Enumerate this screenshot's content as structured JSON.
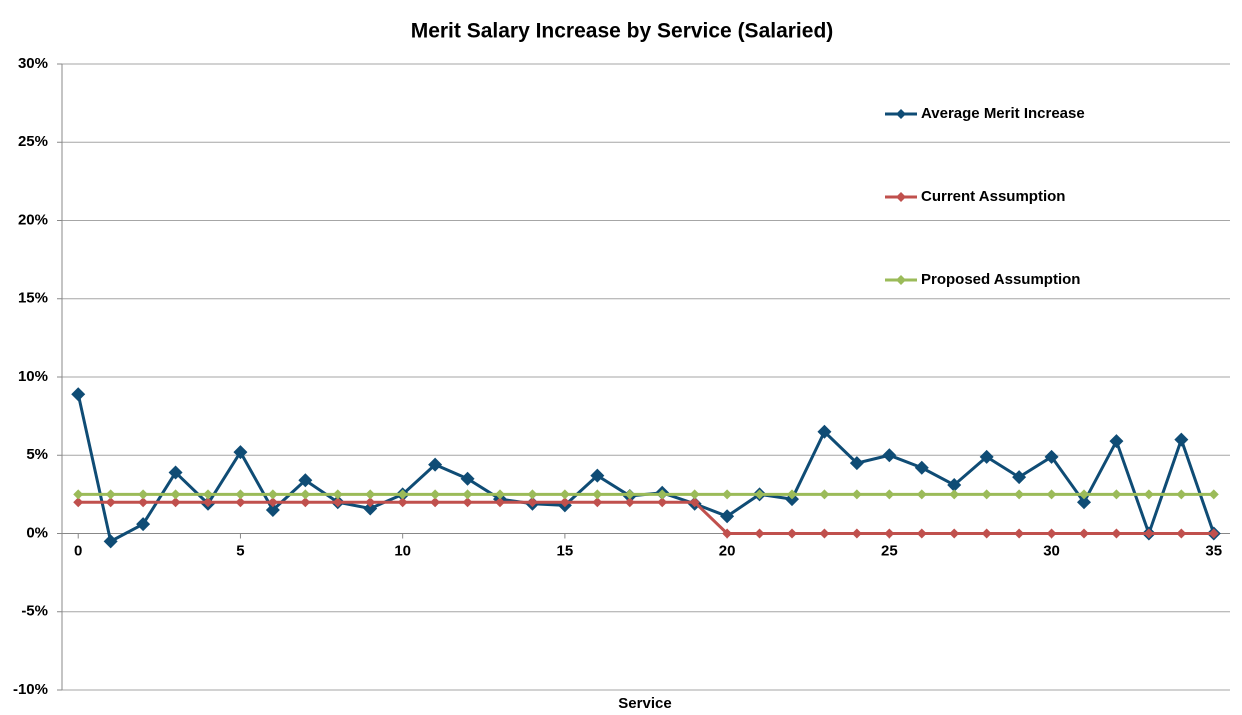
{
  "chart_data": {
    "type": "line",
    "title": "Merit Salary Increase by Service (Salaried)",
    "x_label": "Service",
    "x": [
      0,
      1,
      2,
      3,
      4,
      5,
      6,
      7,
      8,
      9,
      10,
      11,
      12,
      13,
      14,
      15,
      16,
      17,
      18,
      19,
      20,
      21,
      22,
      23,
      24,
      25,
      26,
      27,
      28,
      29,
      30,
      31,
      32,
      33,
      34,
      35
    ],
    "series": [
      {
        "name": "Average Merit Increase",
        "color": "#0f4c75",
        "values": [
          8.9,
          -0.5,
          0.6,
          3.9,
          1.9,
          5.2,
          1.5,
          3.4,
          2.0,
          1.6,
          2.5,
          4.4,
          3.5,
          2.2,
          1.9,
          1.8,
          3.7,
          2.4,
          2.6,
          1.9,
          1.1,
          2.5,
          2.2,
          6.5,
          4.5,
          5.0,
          4.2,
          3.1,
          4.9,
          3.6,
          4.9,
          2.0,
          5.9,
          0.0,
          6.0,
          0.0
        ]
      },
      {
        "name": "Current Assumption",
        "color": "#c0504d",
        "values": [
          2,
          2,
          2,
          2,
          2,
          2,
          2,
          2,
          2,
          2,
          2,
          2,
          2,
          2,
          2,
          2,
          2,
          2,
          2,
          2,
          0,
          0,
          0,
          0,
          0,
          0,
          0,
          0,
          0,
          0,
          0,
          0,
          0,
          0,
          0,
          0
        ]
      },
      {
        "name": "Proposed Assumption",
        "color": "#9bbb59",
        "values": [
          2.5,
          2.5,
          2.5,
          2.5,
          2.5,
          2.5,
          2.5,
          2.5,
          2.5,
          2.5,
          2.5,
          2.5,
          2.5,
          2.5,
          2.5,
          2.5,
          2.5,
          2.5,
          2.5,
          2.5,
          2.5,
          2.5,
          2.5,
          2.5,
          2.5,
          2.5,
          2.5,
          2.5,
          2.5,
          2.5,
          2.5,
          2.5,
          2.5,
          2.5,
          2.5,
          2.5
        ]
      }
    ],
    "xlim": [
      -0.5,
      35.5
    ],
    "xticks": [
      0,
      5,
      10,
      15,
      20,
      25,
      30,
      35
    ],
    "ylim": [
      -10,
      30
    ],
    "yticks": [
      {
        "value": -10,
        "label": "-10%"
      },
      {
        "value": -5,
        "label": "-5%"
      },
      {
        "value": 0,
        "label": "0%"
      },
      {
        "value": 5,
        "label": "5%"
      },
      {
        "value": 10,
        "label": "10%"
      },
      {
        "value": 15,
        "label": "15%"
      },
      {
        "value": 20,
        "label": "20%"
      },
      {
        "value": 25,
        "label": "25%"
      },
      {
        "value": 30,
        "label": "30%"
      }
    ],
    "grid": true,
    "legend": "upper right"
  }
}
